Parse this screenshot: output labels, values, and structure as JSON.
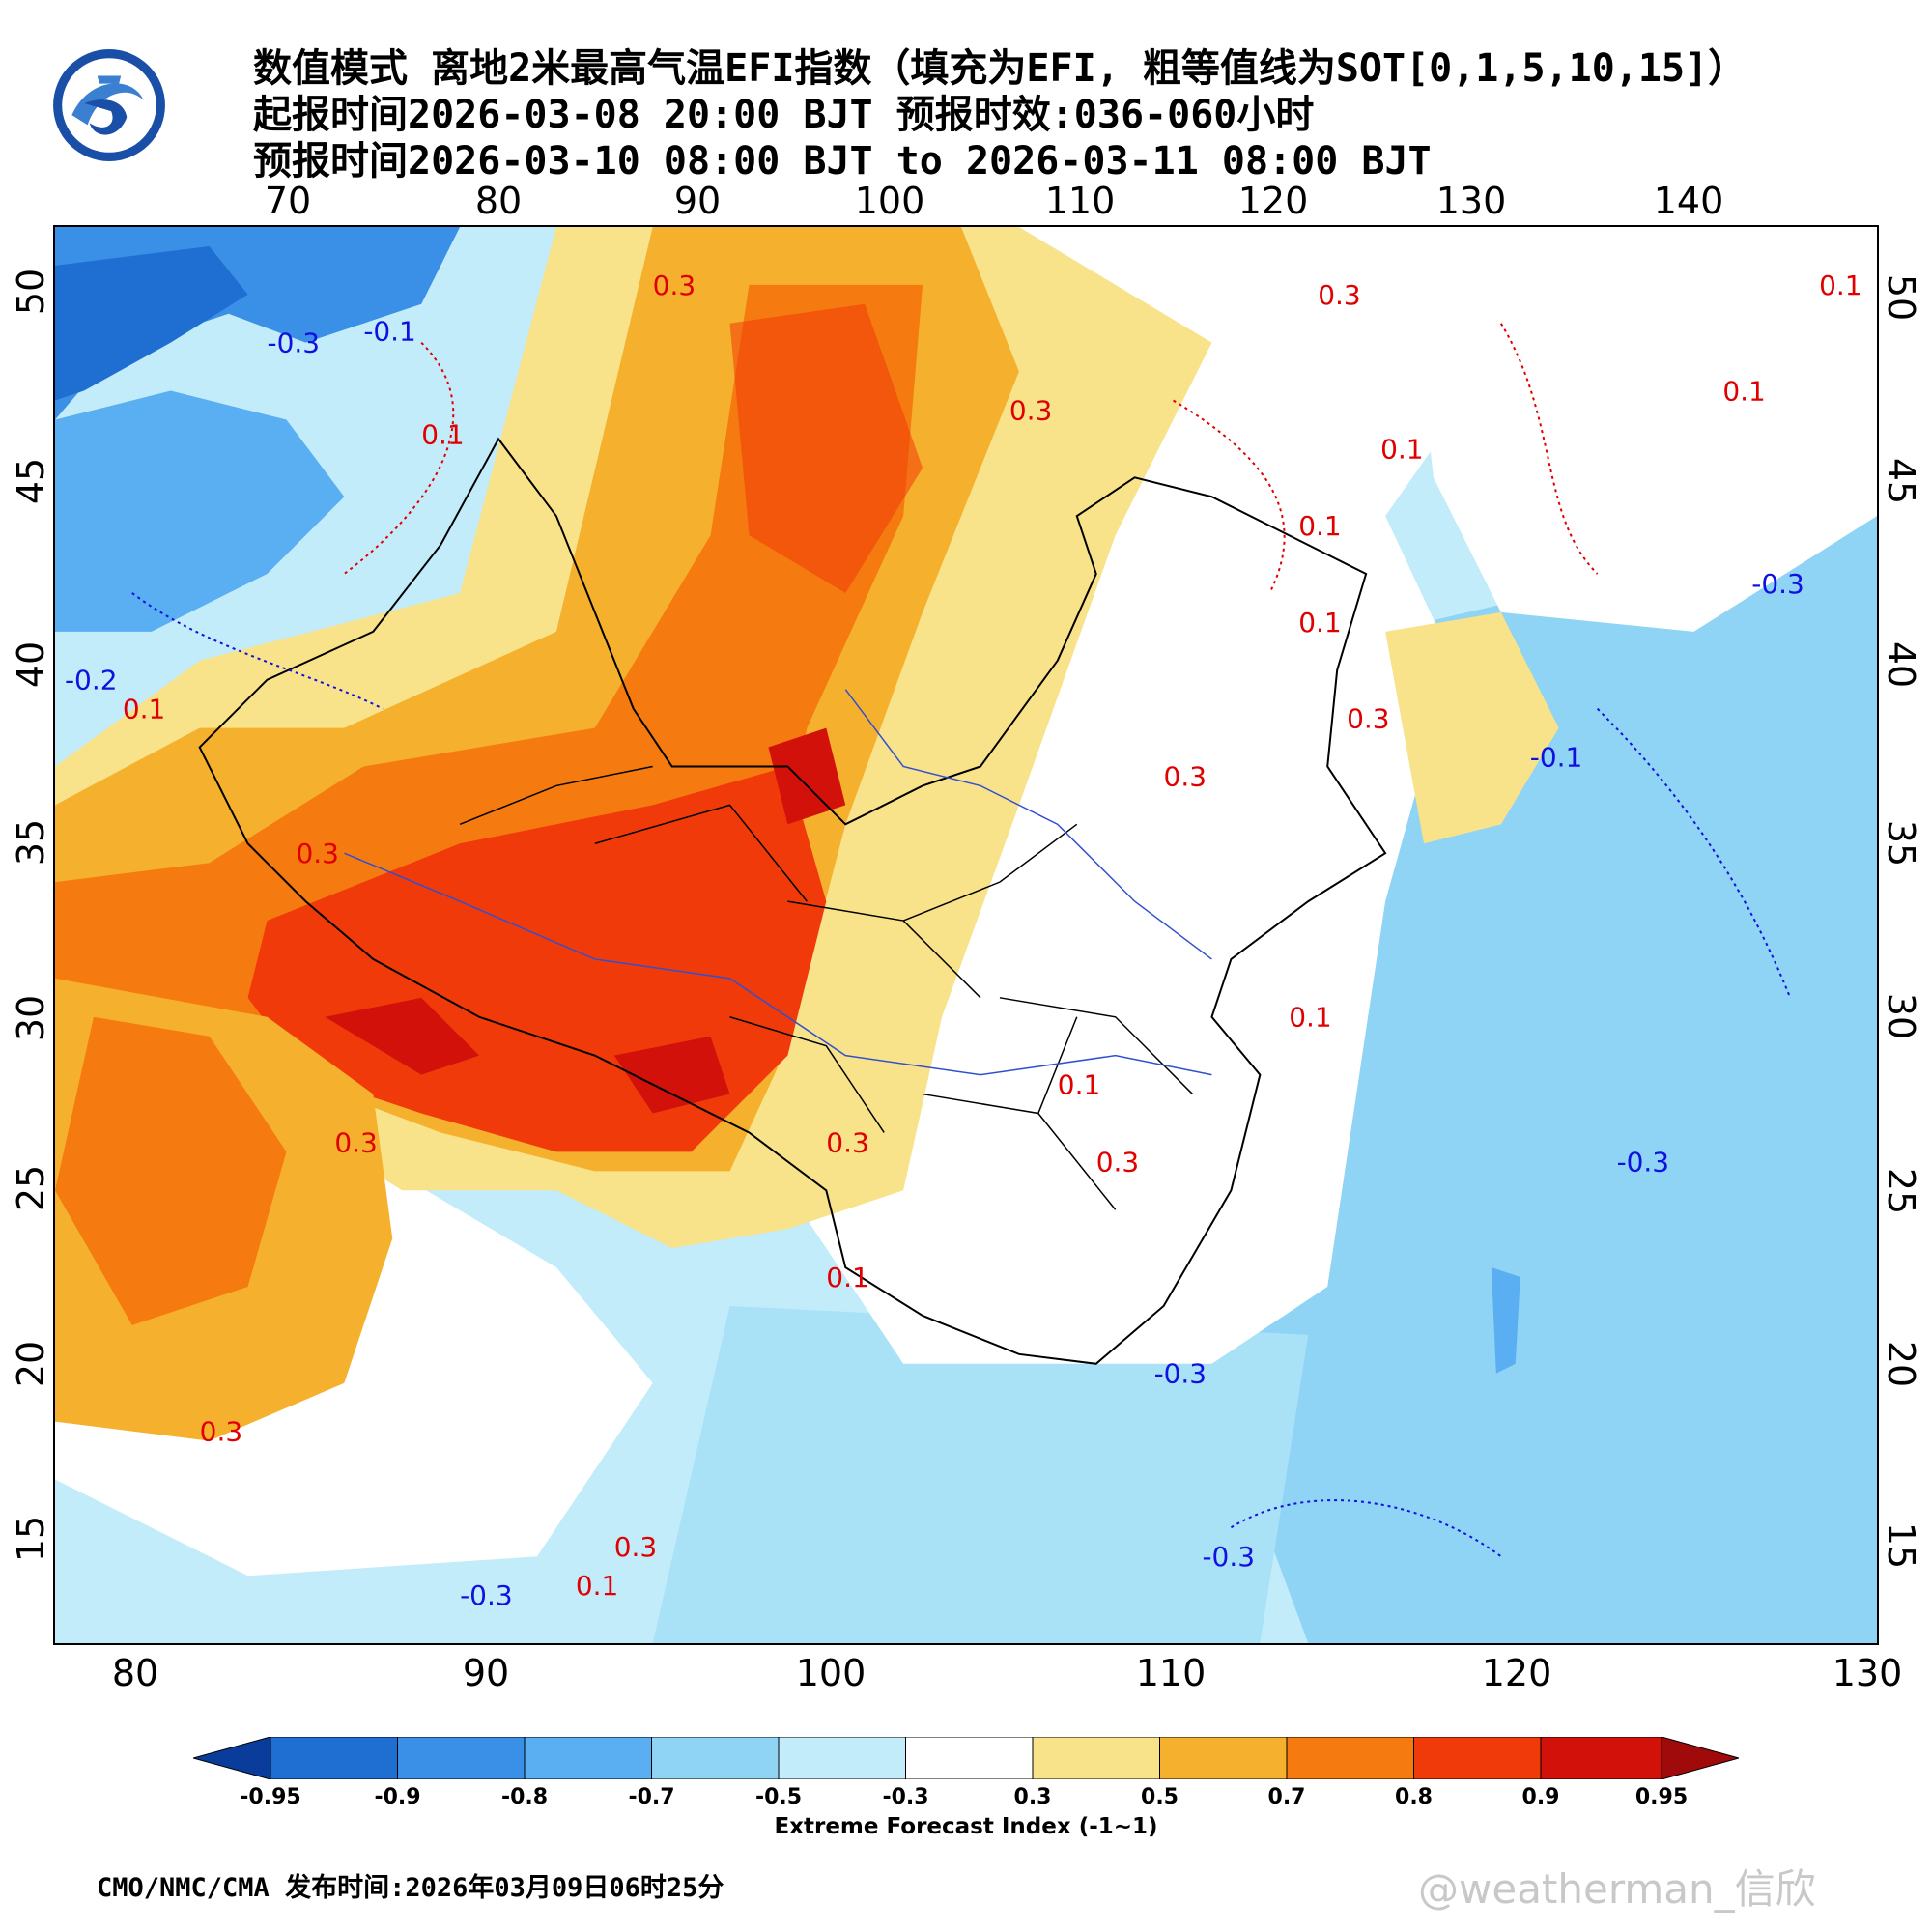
{
  "header": {
    "line1": "数值模式 离地2米最高气温EFI指数（填充为EFI, 粗等值线为SOT[0,1,5,10,15]）",
    "line2": "起报时间2026-03-08 20:00 BJT 预报时效:036-060小时",
    "line3": "预报时间2026-03-10 08:00 BJT to 2026-03-11 08:00 BJT"
  },
  "axes": {
    "top_lon": [
      "70",
      "80",
      "90",
      "100",
      "110",
      "120",
      "130",
      "140"
    ],
    "bottom_lon": [
      "80",
      "90",
      "100",
      "110",
      "120",
      "130"
    ],
    "left_lat": [
      "50",
      "45",
      "40",
      "35",
      "30",
      "25",
      "20",
      "15"
    ],
    "right_lat": [
      "50",
      "45",
      "40",
      "35",
      "30",
      "25",
      "20",
      "15"
    ]
  },
  "contour_labels": [
    {
      "text": "0.3",
      "color": "#e00000"
    },
    {
      "text": "0.3",
      "color": "#e00000"
    },
    {
      "text": "0.1",
      "color": "#e00000"
    },
    {
      "text": "0.3",
      "color": "#e00000"
    },
    {
      "text": "-0.3",
      "color": "#1010e0"
    },
    {
      "text": "-0.1",
      "color": "#1010e0"
    },
    {
      "text": "0.1",
      "color": "#e00000"
    },
    {
      "text": "0.1",
      "color": "#e00000"
    },
    {
      "text": "0.1",
      "color": "#e00000"
    },
    {
      "text": "-0.3",
      "color": "#1010e0"
    },
    {
      "text": "-0.1",
      "color": "#1010e0"
    },
    {
      "text": "-0.2",
      "color": "#1010e0"
    },
    {
      "text": "0.1",
      "color": "#e00000"
    },
    {
      "text": "0.3",
      "color": "#e00000"
    },
    {
      "text": "0.3",
      "color": "#e00000"
    },
    {
      "text": "0.3",
      "color": "#e00000"
    },
    {
      "text": "0.1",
      "color": "#e00000"
    },
    {
      "text": "0.3",
      "color": "#e00000"
    },
    {
      "text": "0.1",
      "color": "#e00000"
    },
    {
      "text": "0.3",
      "color": "#e00000"
    },
    {
      "text": "0.1",
      "color": "#e00000"
    },
    {
      "text": "-0.3",
      "color": "#1010e0"
    },
    {
      "text": "-0.3",
      "color": "#1010e0"
    },
    {
      "text": "0.3",
      "color": "#e00000"
    },
    {
      "text": "-0.3",
      "color": "#1010e0"
    },
    {
      "text": "0.1",
      "color": "#e00000"
    },
    {
      "text": "0.3",
      "color": "#e00000"
    },
    {
      "text": "-0.3",
      "color": "#1010e0"
    },
    {
      "text": "0.3",
      "color": "#e00000"
    },
    {
      "text": "0.1",
      "color": "#e00000"
    },
    {
      "text": "0.1",
      "color": "#e00000"
    }
  ],
  "colorbar": {
    "colors": [
      "#0a3c9c",
      "#1f6fd2",
      "#3a8fe6",
      "#5aaef2",
      "#8fd3f5",
      "#c2ecfa",
      "#ffffff",
      "#f8e28a",
      "#f5b12e",
      "#f57a10",
      "#f03a0a",
      "#d2120a",
      "#a00a0a"
    ],
    "labels": [
      "-0.95",
      "-0.9",
      "-0.8",
      "-0.7",
      "-0.5",
      "-0.3",
      "0.3",
      "0.5",
      "0.7",
      "0.8",
      "0.9",
      "0.95"
    ],
    "title": "Extreme Forecast Index (-1~1)"
  },
  "footer": "CMO/NMC/CMA 发布时间:2026年03月09日06时25分",
  "watermark": "@weatherman_信欣"
}
